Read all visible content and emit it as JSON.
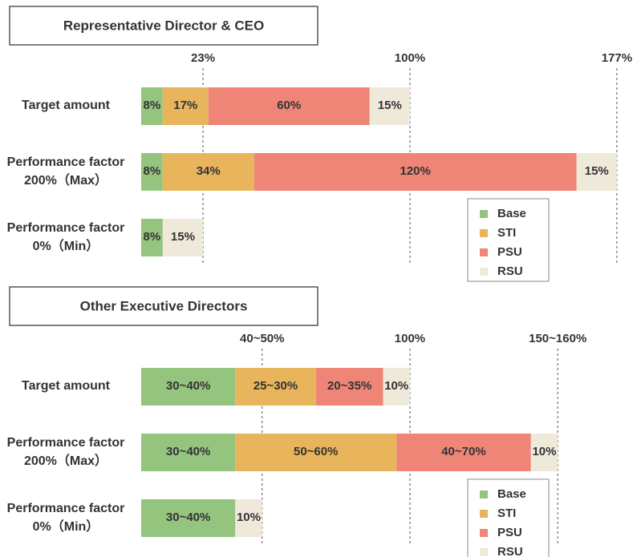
{
  "chart_data": [
    {
      "type": "stacked-bar",
      "orientation": "horizontal",
      "title": "Representative Director & CEO",
      "categories": [
        [
          "Target amount"
        ],
        [
          "Performance factor",
          "200%（Max）"
        ],
        [
          "Performance factor",
          "0%（Min）"
        ]
      ],
      "series": [
        {
          "name": "Base",
          "color": "#95c47f",
          "values": [
            8,
            8,
            8
          ],
          "value_labels": [
            "8%",
            "8%",
            "8%"
          ]
        },
        {
          "name": "STI",
          "color": "#e8b55c",
          "values": [
            17,
            34,
            0
          ],
          "value_labels": [
            "17%",
            "34%",
            null
          ]
        },
        {
          "name": "PSU",
          "color": "#ef8577",
          "values": [
            60,
            120,
            0
          ],
          "value_labels": [
            "60%",
            "120%",
            null
          ]
        },
        {
          "name": "RSU",
          "color": "#efe9da",
          "values": [
            15,
            15,
            15
          ],
          "value_labels": [
            "15%",
            "15%",
            "15%"
          ]
        }
      ],
      "xlim": [
        0,
        183
      ],
      "xticks": [
        {
          "value": 23,
          "label": "23%"
        },
        {
          "value": 100,
          "label": "100%"
        },
        {
          "value": 177,
          "label": "177%"
        }
      ]
    },
    {
      "type": "stacked-bar",
      "orientation": "horizontal",
      "title": "Other Executive Directors",
      "categories": [
        [
          "Target amount"
        ],
        [
          "Performance factor",
          "200%（Max）"
        ],
        [
          "Performance factor",
          "0%（Min）"
        ]
      ],
      "series": [
        {
          "name": "Base",
          "color": "#95c47f",
          "values": [
            35,
            35,
            35
          ],
          "value_labels": [
            "30~40%",
            "30~40%",
            "30~40%"
          ]
        },
        {
          "name": "STI",
          "color": "#e8b55c",
          "values": [
            30,
            60,
            0
          ],
          "value_labels": [
            "25~30%",
            "50~60%",
            null
          ]
        },
        {
          "name": "PSU",
          "color": "#ef8577",
          "values": [
            25,
            50,
            0
          ],
          "value_labels": [
            "20~35%",
            "40~70%",
            null
          ]
        },
        {
          "name": "RSU",
          "color": "#efe9da",
          "values": [
            10,
            10,
            10
          ],
          "value_labels": [
            "10%",
            "10%",
            "10%"
          ]
        }
      ],
      "xlim": [
        0,
        183
      ],
      "xticks": [
        {
          "value": 45,
          "label": "40~50%"
        },
        {
          "value": 100,
          "label": "100%"
        },
        {
          "value": 155,
          "label": "150~160%"
        }
      ]
    }
  ]
}
